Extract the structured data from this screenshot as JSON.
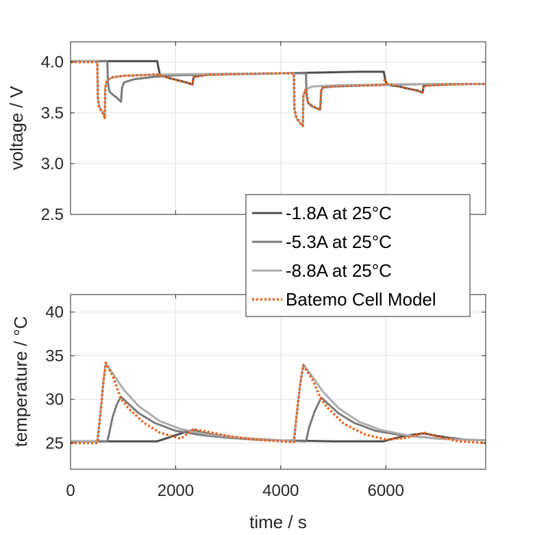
{
  "chart_data": [
    {
      "type": "line",
      "panel": "top",
      "ylabel": "voltage / V",
      "xlabel": "",
      "xlim": [
        0,
        7900
      ],
      "ylim": [
        2.5,
        4.2
      ],
      "xticks": [
        0,
        2000,
        4000,
        6000
      ],
      "yticks": [
        2.5,
        3.0,
        3.5,
        4.0
      ],
      "ytick_labels": [
        "2.5",
        "3.0",
        "3.5",
        "4.0"
      ],
      "grid": true,
      "series": [
        {
          "name": "-1.8A at 25°C",
          "color": "#4d4d4d",
          "style": "solid",
          "x": [
            0,
            1650,
            1670,
            1700,
            1780,
            1900,
            2050,
            2200,
            2320,
            2340,
            2400,
            2600,
            3000,
            3500,
            4000,
            4500,
            5000,
            5500,
            5960,
            5980,
            6010,
            6100,
            6250,
            6400,
            6600,
            6700,
            6720,
            6800,
            7200,
            7600,
            7900
          ],
          "y": [
            4.01,
            4.01,
            3.95,
            3.88,
            3.86,
            3.84,
            3.82,
            3.8,
            3.78,
            3.85,
            3.865,
            3.875,
            3.88,
            3.885,
            3.89,
            3.895,
            3.9,
            3.905,
            3.905,
            3.85,
            3.79,
            3.77,
            3.76,
            3.74,
            3.72,
            3.7,
            3.765,
            3.775,
            3.78,
            3.785,
            3.785
          ]
        },
        {
          "name": "-5.3A at 25°C",
          "color": "#7a7a7a",
          "style": "solid",
          "x": [
            0,
            700,
            710,
            740,
            800,
            880,
            960,
            980,
            1020,
            1200,
            1600,
            2000,
            2500,
            3000,
            3500,
            4000,
            4480,
            4490,
            4520,
            4580,
            4660,
            4750,
            4770,
            4800,
            5000,
            5500,
            6000,
            6500,
            7000,
            7500,
            7900
          ],
          "y": [
            4.01,
            4.01,
            3.8,
            3.71,
            3.68,
            3.65,
            3.61,
            3.75,
            3.8,
            3.83,
            3.855,
            3.87,
            3.875,
            3.88,
            3.885,
            3.89,
            3.89,
            3.67,
            3.6,
            3.57,
            3.55,
            3.53,
            3.72,
            3.75,
            3.76,
            3.77,
            3.775,
            3.78,
            3.785,
            3.785,
            3.785
          ]
        },
        {
          "name": "-8.8A at 25°C",
          "color": "#ababab",
          "style": "solid",
          "x": [
            0,
            510,
            520,
            540,
            580,
            620,
            650,
            660,
            690,
            800,
            1000,
            1500,
            2000,
            3000,
            4000,
            4250,
            4260,
            4280,
            4320,
            4370,
            4420,
            4430,
            4470,
            4600,
            5000,
            6000,
            7000,
            7900
          ],
          "y": [
            4.01,
            4.01,
            3.65,
            3.57,
            3.53,
            3.5,
            3.46,
            3.74,
            3.82,
            3.85,
            3.865,
            3.875,
            3.88,
            3.885,
            3.89,
            3.89,
            3.55,
            3.47,
            3.43,
            3.4,
            3.37,
            3.67,
            3.73,
            3.76,
            3.77,
            3.78,
            3.785,
            3.785
          ]
        },
        {
          "name": "Batemo Cell Model",
          "color": "#e8621c",
          "style": "dotted",
          "x": [
            0,
            510,
            520,
            540,
            580,
            620,
            650,
            660,
            690,
            800,
            1000,
            1500,
            1650,
            1670,
            1700,
            1900,
            2200,
            2320,
            2340,
            2600,
            3000,
            4000,
            4250,
            4260,
            4300,
            4370,
            4420,
            4430,
            4480,
            4500,
            4520,
            4600,
            4750,
            4770,
            4800,
            5000,
            5960,
            5980,
            6010,
            6250,
            6600,
            6700,
            6720,
            7200,
            7900
          ],
          "y": [
            4.0,
            4.0,
            3.64,
            3.56,
            3.52,
            3.49,
            3.45,
            3.74,
            3.82,
            3.85,
            3.865,
            3.875,
            3.88,
            3.86,
            3.87,
            3.84,
            3.8,
            3.78,
            3.85,
            3.875,
            3.88,
            3.89,
            3.89,
            3.54,
            3.46,
            3.4,
            3.37,
            3.67,
            3.73,
            3.67,
            3.6,
            3.57,
            3.53,
            3.72,
            3.75,
            3.76,
            3.775,
            3.84,
            3.79,
            3.76,
            3.72,
            3.7,
            3.765,
            3.78,
            3.785
          ]
        }
      ]
    },
    {
      "type": "line",
      "panel": "bottom",
      "ylabel": "temperature / °C",
      "xlabel": "time / s",
      "xlim": [
        0,
        7900
      ],
      "ylim": [
        22,
        42
      ],
      "xticks": [
        0,
        2000,
        4000,
        6000
      ],
      "xtick_labels": [
        "0",
        "2000",
        "4000",
        "6000"
      ],
      "yticks": [
        25,
        30,
        35,
        40
      ],
      "ytick_labels": [
        "25",
        "30",
        "35",
        "40"
      ],
      "grid": true,
      "series": [
        {
          "name": "-1.8A at 25°C",
          "color": "#4d4d4d",
          "style": "solid",
          "x": [
            0,
            1650,
            1800,
            2000,
            2200,
            2340,
            2500,
            2800,
            3200,
            3600,
            4000,
            5000,
            5960,
            6200,
            6500,
            6720,
            6900,
            7200,
            7500,
            7900
          ],
          "y": [
            25.2,
            25.2,
            25.5,
            25.9,
            26.3,
            26.5,
            26.2,
            25.9,
            25.6,
            25.4,
            25.3,
            25.2,
            25.2,
            25.6,
            25.95,
            26.1,
            25.9,
            25.6,
            25.4,
            25.3
          ]
        },
        {
          "name": "-5.3A at 25°C",
          "color": "#7a7a7a",
          "style": "solid",
          "x": [
            0,
            700,
            750,
            800,
            880,
            960,
            1100,
            1300,
            1600,
            2000,
            2500,
            3000,
            3500,
            4000,
            4480,
            4540,
            4650,
            4770,
            4900,
            5100,
            5400,
            5800,
            6300,
            7000,
            7900
          ],
          "y": [
            25.2,
            25.2,
            26.5,
            28.0,
            29.4,
            30.3,
            29.5,
            28.4,
            27.3,
            26.4,
            25.9,
            25.6,
            25.4,
            25.3,
            25.2,
            26.8,
            28.7,
            30.2,
            29.5,
            28.4,
            27.3,
            26.4,
            25.9,
            25.5,
            25.3
          ]
        },
        {
          "name": "-8.8A at 25°C",
          "color": "#ababab",
          "style": "solid",
          "x": [
            0,
            510,
            570,
            620,
            670,
            800,
            1000,
            1300,
            1700,
            2100,
            2600,
            3200,
            3800,
            4250,
            4310,
            4370,
            4430,
            4600,
            4800,
            5100,
            5500,
            5900,
            6400,
            7000,
            7900
          ],
          "y": [
            25.2,
            25.2,
            28.5,
            31.8,
            34.1,
            33.0,
            31.2,
            29.2,
            27.5,
            26.6,
            26.0,
            25.6,
            25.4,
            25.2,
            28.6,
            31.8,
            34.0,
            32.6,
            30.9,
            29.0,
            27.4,
            26.5,
            25.9,
            25.5,
            25.3
          ]
        },
        {
          "name": "Batemo Cell Model",
          "color": "#e8621c",
          "style": "dotted",
          "x": [
            0,
            510,
            570,
            620,
            670,
            800,
            960,
            1100,
            1400,
            1700,
            2100,
            2340,
            2600,
            3000,
            3500,
            4000,
            4250,
            4310,
            4370,
            4430,
            4600,
            4770,
            4900,
            5200,
            5600,
            6000,
            6400,
            6720,
            7000,
            7400,
            7900
          ],
          "y": [
            25.0,
            25.0,
            28.4,
            31.7,
            34.2,
            32.7,
            30.1,
            29.0,
            27.3,
            26.2,
            25.5,
            26.6,
            26.3,
            25.8,
            25.4,
            25.2,
            25.1,
            28.5,
            31.7,
            33.9,
            32.3,
            30.0,
            29.0,
            27.2,
            26.0,
            25.4,
            25.6,
            26.2,
            25.7,
            25.2,
            25.0
          ]
        }
      ]
    }
  ],
  "legend": {
    "placement": "center-right",
    "entries": [
      {
        "label": "-1.8A at 25°C",
        "color": "#4d4d4d",
        "style": "solid"
      },
      {
        "label": "-5.3A at 25°C",
        "color": "#7a7a7a",
        "style": "solid"
      },
      {
        "label": "-8.8A at 25°C",
        "color": "#ababab",
        "style": "solid"
      },
      {
        "label": "Batemo Cell Model",
        "color": "#e8621c",
        "style": "dotted"
      }
    ]
  }
}
